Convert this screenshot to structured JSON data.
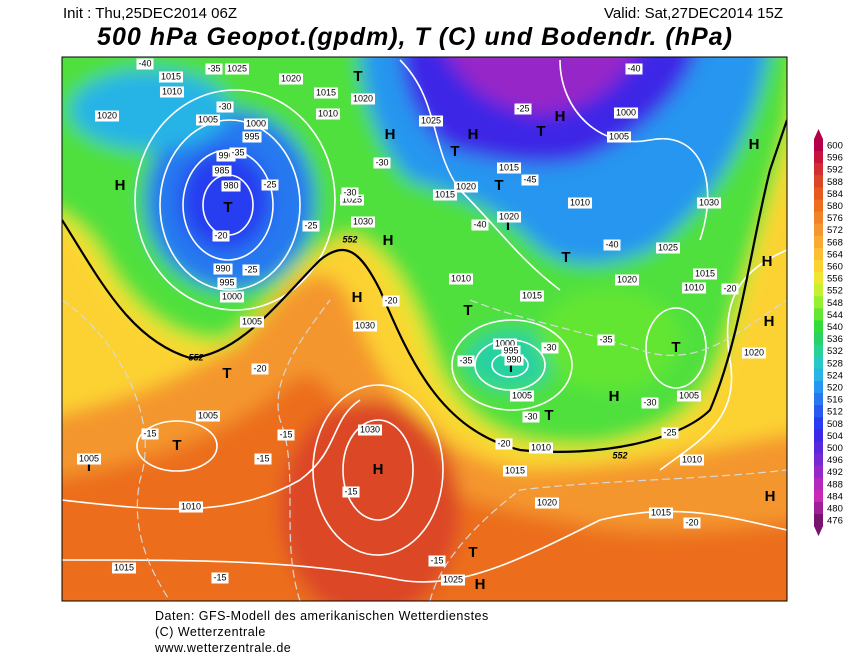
{
  "header": {
    "init": "Init : Thu,25DEC2014 06Z",
    "valid": "Valid: Sat,27DEC2014 15Z",
    "title": "500 hPa Geopot.(gpdm), T (C) und Bodendr. (hPa)"
  },
  "colorbar": {
    "levels": [
      600,
      596,
      592,
      588,
      584,
      580,
      576,
      572,
      568,
      564,
      560,
      556,
      552,
      548,
      544,
      540,
      536,
      532,
      528,
      524,
      520,
      516,
      512,
      508,
      504,
      500,
      496,
      492,
      488,
      484,
      480,
      476
    ],
    "colors": [
      "#b4004b",
      "#c8143c",
      "#d22d32",
      "#dc4628",
      "#e65a1e",
      "#ec6e1e",
      "#f08228",
      "#f49632",
      "#f8aa32",
      "#fcbe32",
      "#fcd232",
      "#f0e632",
      "#c8f032",
      "#96f032",
      "#64e632",
      "#32dc3c",
      "#28d264",
      "#28d296",
      "#28c8c8",
      "#28b4e6",
      "#2896f0",
      "#2878f0",
      "#285af0",
      "#283cf0",
      "#3c28e6",
      "#5a28dc",
      "#7828d2",
      "#9628c8",
      "#b428be",
      "#c828b4",
      "#a01e96",
      "#78146e"
    ]
  },
  "map": {
    "centers": [
      "T",
      "H",
      "H",
      "T",
      "T",
      "H",
      "T",
      "T",
      "H",
      "H",
      "T",
      "T",
      "H",
      "T",
      "T",
      "T",
      "T",
      "T",
      "T",
      "H",
      "T",
      "H",
      "H",
      "H",
      "H",
      "H",
      "T",
      "H"
    ],
    "isobar_labels": [
      1025,
      1015,
      1010,
      1020,
      1015,
      1010,
      1020,
      1020,
      1005,
      1000,
      995,
      990,
      985,
      980,
      1025,
      1000,
      1005,
      1015,
      1020,
      1015,
      1025,
      1030,
      1020,
      1010,
      1030,
      1025,
      1020,
      1015,
      1010,
      990,
      995,
      1000,
      1005,
      1010,
      1015,
      1030,
      1000,
      995,
      990,
      1005,
      1005,
      1020,
      1005,
      1030,
      1005,
      1010,
      1015,
      1010,
      1020,
      1015,
      1010,
      1015,
      1025
    ],
    "temperature_labels": [
      -40,
      -35,
      -30,
      -35,
      -25,
      -30,
      -30,
      -25,
      -25,
      -20,
      -25,
      -45,
      -40,
      -40,
      -40,
      -20,
      -20,
      -35,
      -30,
      -35,
      -30,
      -25,
      -20,
      -30,
      -15,
      -15,
      -15,
      -15,
      -20,
      -20,
      -15,
      -15
    ],
    "height_labels": [
      552,
      552,
      552
    ]
  },
  "footer": {
    "lines": [
      "Daten: GFS-Modell des amerikanischen Wetterdienstes",
      "(C) Wetterzentrale",
      "www.wetterzentrale.de"
    ]
  }
}
